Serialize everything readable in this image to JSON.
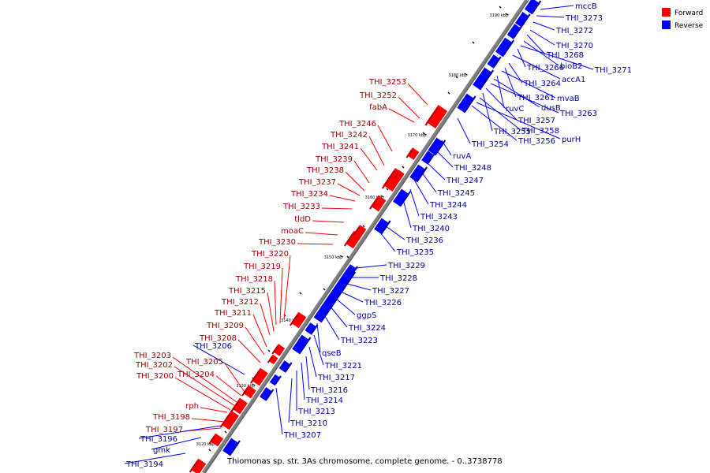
{
  "caption": "Thiomonas sp. str. 3As chromosome, complete genome. - 0..3738778",
  "legend": [
    {
      "label": "Forward",
      "color": "#ff0000"
    },
    {
      "label": "Reverse",
      "color": "#0000ff"
    }
  ],
  "colors": {
    "forward": "#ff0000",
    "reverse": "#0000ff",
    "backbone": "#7f7f7f"
  },
  "ticks": [
    "3120 kbp",
    "3130 kbp",
    "3140 kbp",
    "3150 kbp",
    "3160 kbp",
    "3170 kbp",
    "3180 kbp",
    "3190 kbp"
  ],
  "forward_labels": [
    "THI_3253",
    "THI_3252",
    "fabA",
    "THI_3246",
    "THI_3242",
    "THI_3241",
    "THI_3239",
    "THI_3238",
    "THI_3237",
    "THI_3234",
    "THI_3233",
    "tldD",
    "moaC",
    "THI_3230",
    "THI_3220",
    "THI_3219",
    "THI_3218",
    "THI_3215",
    "THI_3212",
    "THI_3211",
    "THI_3209",
    "THI_3208",
    "THI_3205",
    "THI_3204",
    "THI_3203",
    "THI_3202",
    "THI_3200",
    "rph",
    "THI_3198",
    "THI_3197"
  ],
  "reverse_labels": [
    "mccB",
    "THI_3273",
    "THI_3272",
    "THI_3270",
    "THI_3268",
    "bioB2",
    "THI_3271",
    "THI_3266",
    "accA1",
    "THI_3264",
    "THI_3261",
    "mvaB",
    "ruvC",
    "dusB",
    "THI_3263",
    "THI_3257",
    "THI_3255",
    "THI_3258",
    "purH",
    "THI_3256",
    "THI_3254",
    "ruvA",
    "THI_3248",
    "THI_3247",
    "THI_3245",
    "THI_3244",
    "THI_3243",
    "THI_3240",
    "THI_3236",
    "THI_3235",
    "THI_3229",
    "THI_3228",
    "THI_3227",
    "THI_3226",
    "ggpS",
    "THI_3224",
    "THI_3223",
    "qseB",
    "THI_3221",
    "THI_3217",
    "THI_3216",
    "THI_3214",
    "THI_3213",
    "THI_3210",
    "THI_3207",
    "THI_3206",
    "THI_3196",
    "gmk",
    "THI_3194"
  ]
}
